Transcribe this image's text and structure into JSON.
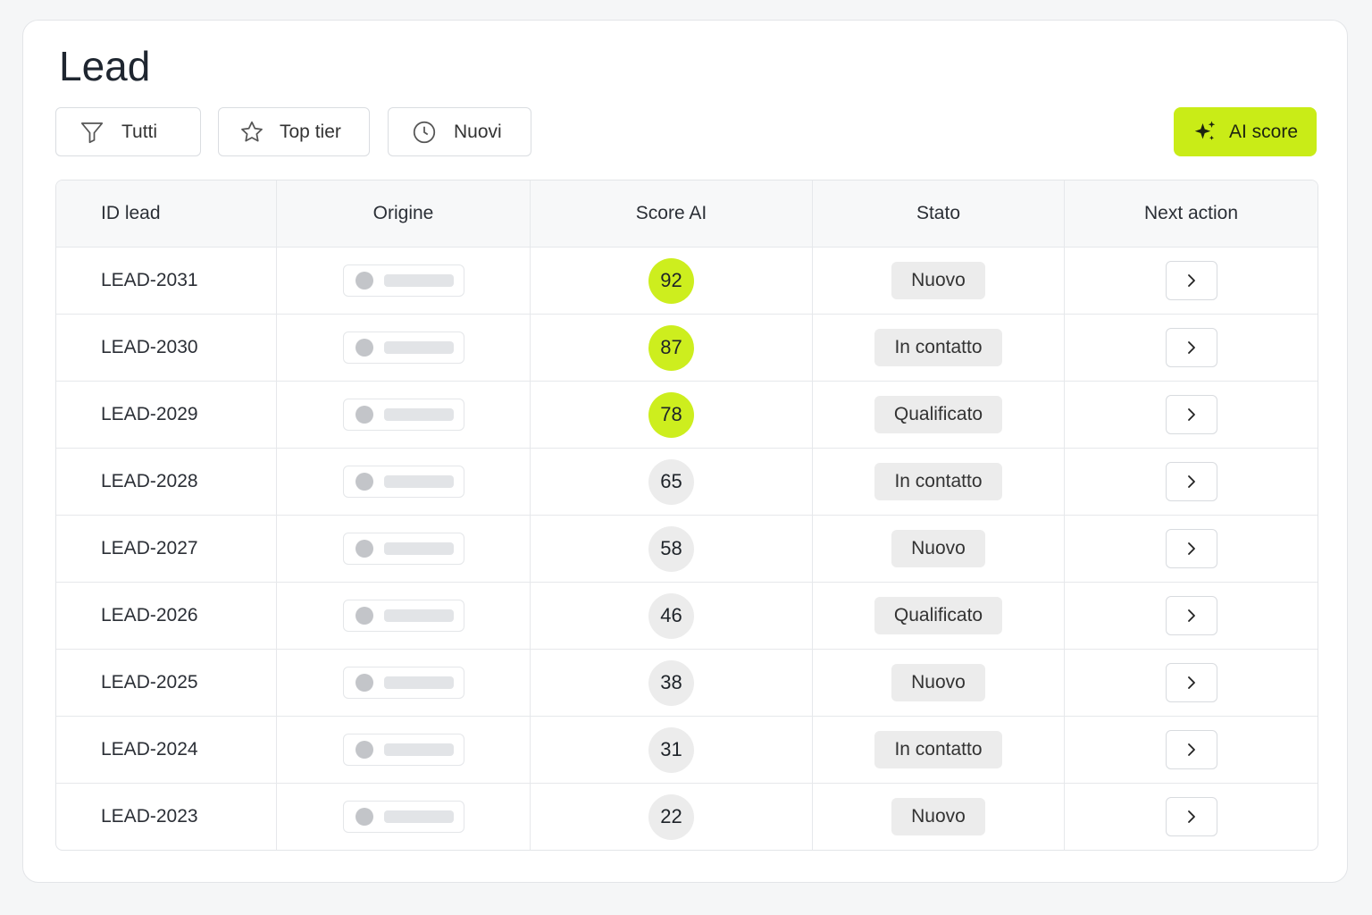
{
  "header": {
    "title": "Lead"
  },
  "filters": [
    "Tutti",
    "Top tier",
    "Nuovi"
  ],
  "ai_button": "AI score",
  "table": {
    "columns": [
      "ID lead",
      "Origine",
      "Score AI",
      "Stato",
      "Next action"
    ],
    "rows": [
      {
        "id": "LEAD-2031",
        "score": 92,
        "score_color": "#cdee1e",
        "status": "Nuovo"
      },
      {
        "id": "LEAD-2030",
        "score": 87,
        "score_color": "#cdee1e",
        "status": "In contatto"
      },
      {
        "id": "LEAD-2029",
        "score": 78,
        "score_color": "#cdee1e",
        "status": "Qualificato"
      },
      {
        "id": "LEAD-2028",
        "score": 65,
        "score_color": "#ececec",
        "status": "In contatto"
      },
      {
        "id": "LEAD-2027",
        "score": 58,
        "score_color": "#ececec",
        "status": "Nuovo"
      },
      {
        "id": "LEAD-2026",
        "score": 46,
        "score_color": "#ececec",
        "status": "Qualificato"
      },
      {
        "id": "LEAD-2025",
        "score": 38,
        "score_color": "#ececec",
        "status": "Nuovo"
      },
      {
        "id": "LEAD-2024",
        "score": 31,
        "score_color": "#ececec",
        "status": "In contatto"
      },
      {
        "id": "LEAD-2023",
        "score": 22,
        "score_color": "#ececec",
        "status": "Nuovo"
      }
    ]
  }
}
